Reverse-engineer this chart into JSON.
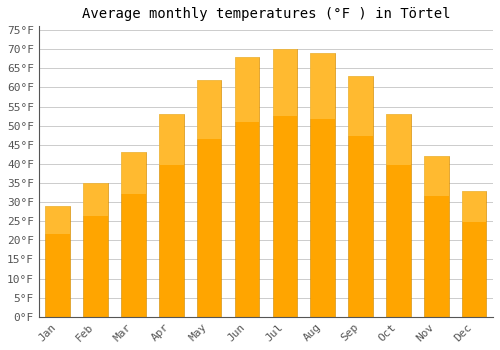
{
  "title": "Average monthly temperatures (°F ) in Törtel",
  "months": [
    "Jan",
    "Feb",
    "Mar",
    "Apr",
    "May",
    "Jun",
    "Jul",
    "Aug",
    "Sep",
    "Oct",
    "Nov",
    "Dec"
  ],
  "values": [
    29,
    35,
    43,
    53,
    62,
    68,
    70,
    69,
    63,
    53,
    42,
    33
  ],
  "bar_color_top": "#FFB300",
  "bar_color_bottom": "#FFA000",
  "bar_edge_color": "#E69500",
  "background_color": "#ffffff",
  "grid_color": "#cccccc",
  "yticks": [
    0,
    5,
    10,
    15,
    20,
    25,
    30,
    35,
    40,
    45,
    50,
    55,
    60,
    65,
    70,
    75
  ],
  "ylim": [
    0,
    76
  ],
  "title_fontsize": 10,
  "tick_fontsize": 8,
  "font_family": "monospace"
}
